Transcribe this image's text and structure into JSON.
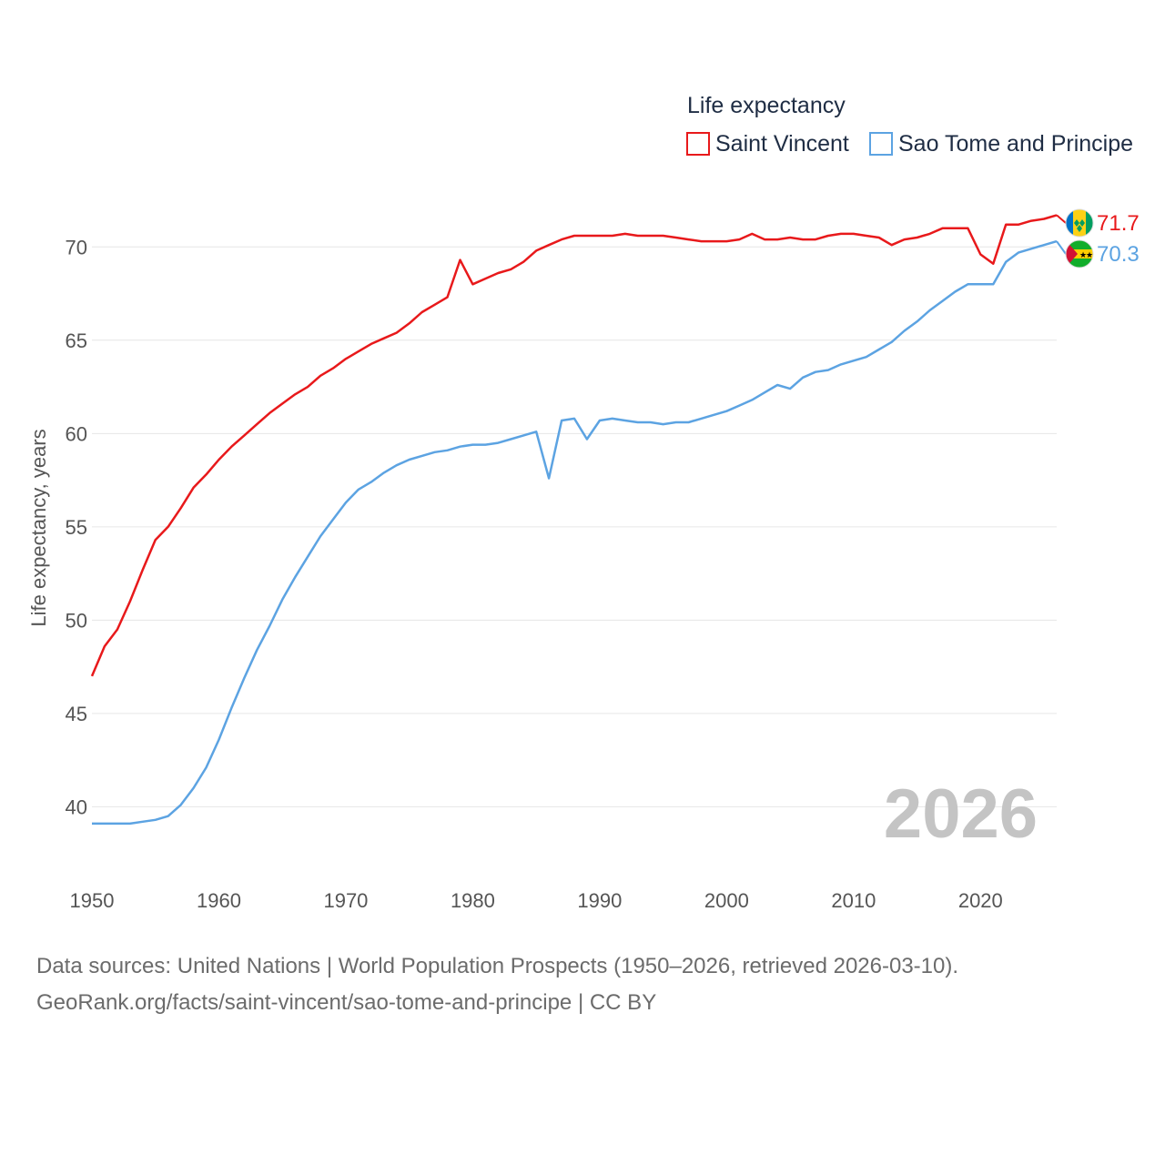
{
  "chart_data": {
    "type": "line",
    "legend": {
      "title": "Life expectancy",
      "position": "top-right"
    },
    "ylabel": "Life expectancy, years",
    "xlabel": "",
    "xlim": [
      1950,
      2026
    ],
    "ylim": [
      36.9,
      72.5
    ],
    "x_ticks": [
      "1950",
      "1960",
      "1970",
      "1980",
      "1990",
      "2000",
      "2010",
      "2020"
    ],
    "y_ticks": [
      "40",
      "45",
      "50",
      "55",
      "60",
      "65",
      "70"
    ],
    "watermark_year": "2026",
    "grid": true,
    "series": [
      {
        "name": "Saint Vincent",
        "color": "#e8191b",
        "flag": "saint-vincent-flag-icon",
        "end_label": "71.7",
        "points": [
          [
            1950,
            47.0
          ],
          [
            1951,
            48.6
          ],
          [
            1952,
            49.5
          ],
          [
            1953,
            51.0
          ],
          [
            1954,
            52.7
          ],
          [
            1955,
            54.3
          ],
          [
            1956,
            55.0
          ],
          [
            1957,
            56.0
          ],
          [
            1958,
            57.1
          ],
          [
            1959,
            57.8
          ],
          [
            1960,
            58.6
          ],
          [
            1961,
            59.3
          ],
          [
            1962,
            59.9
          ],
          [
            1963,
            60.5
          ],
          [
            1964,
            61.1
          ],
          [
            1965,
            61.6
          ],
          [
            1966,
            62.1
          ],
          [
            1967,
            62.5
          ],
          [
            1968,
            63.1
          ],
          [
            1969,
            63.5
          ],
          [
            1970,
            64.0
          ],
          [
            1971,
            64.4
          ],
          [
            1972,
            64.8
          ],
          [
            1973,
            65.1
          ],
          [
            1974,
            65.4
          ],
          [
            1975,
            65.9
          ],
          [
            1976,
            66.5
          ],
          [
            1977,
            66.9
          ],
          [
            1978,
            67.3
          ],
          [
            1979,
            69.3
          ],
          [
            1980,
            68.0
          ],
          [
            1981,
            68.3
          ],
          [
            1982,
            68.6
          ],
          [
            1983,
            68.8
          ],
          [
            1984,
            69.2
          ],
          [
            1985,
            69.8
          ],
          [
            1986,
            70.1
          ],
          [
            1987,
            70.4
          ],
          [
            1988,
            70.6
          ],
          [
            1989,
            70.6
          ],
          [
            1990,
            70.6
          ],
          [
            1991,
            70.6
          ],
          [
            1992,
            70.7
          ],
          [
            1993,
            70.6
          ],
          [
            1994,
            70.6
          ],
          [
            1995,
            70.6
          ],
          [
            1996,
            70.5
          ],
          [
            1997,
            70.4
          ],
          [
            1998,
            70.3
          ],
          [
            1999,
            70.3
          ],
          [
            2000,
            70.3
          ],
          [
            2001,
            70.4
          ],
          [
            2002,
            70.7
          ],
          [
            2003,
            70.4
          ],
          [
            2004,
            70.4
          ],
          [
            2005,
            70.5
          ],
          [
            2006,
            70.4
          ],
          [
            2007,
            70.4
          ],
          [
            2008,
            70.6
          ],
          [
            2009,
            70.7
          ],
          [
            2010,
            70.7
          ],
          [
            2011,
            70.6
          ],
          [
            2012,
            70.5
          ],
          [
            2013,
            70.1
          ],
          [
            2014,
            70.4
          ],
          [
            2015,
            70.5
          ],
          [
            2016,
            70.7
          ],
          [
            2017,
            71.0
          ],
          [
            2018,
            71.0
          ],
          [
            2019,
            71.0
          ],
          [
            2020,
            69.6
          ],
          [
            2021,
            69.1
          ],
          [
            2022,
            71.2
          ],
          [
            2023,
            71.2
          ],
          [
            2024,
            71.4
          ],
          [
            2025,
            71.5
          ],
          [
            2026,
            71.7
          ]
        ]
      },
      {
        "name": "Sao Tome and Principe",
        "color": "#5ca3e2",
        "flag": "sao-tome-flag-icon",
        "end_label": "70.3",
        "points": [
          [
            1950,
            39.1
          ],
          [
            1951,
            39.1
          ],
          [
            1952,
            39.1
          ],
          [
            1953,
            39.1
          ],
          [
            1954,
            39.2
          ],
          [
            1955,
            39.3
          ],
          [
            1956,
            39.5
          ],
          [
            1957,
            40.1
          ],
          [
            1958,
            41.0
          ],
          [
            1959,
            42.1
          ],
          [
            1960,
            43.6
          ],
          [
            1961,
            45.3
          ],
          [
            1962,
            46.9
          ],
          [
            1963,
            48.4
          ],
          [
            1964,
            49.7
          ],
          [
            1965,
            51.1
          ],
          [
            1966,
            52.3
          ],
          [
            1967,
            53.4
          ],
          [
            1968,
            54.5
          ],
          [
            1969,
            55.4
          ],
          [
            1970,
            56.3
          ],
          [
            1971,
            57.0
          ],
          [
            1972,
            57.4
          ],
          [
            1973,
            57.9
          ],
          [
            1974,
            58.3
          ],
          [
            1975,
            58.6
          ],
          [
            1976,
            58.8
          ],
          [
            1977,
            59.0
          ],
          [
            1978,
            59.1
          ],
          [
            1979,
            59.3
          ],
          [
            1980,
            59.4
          ],
          [
            1981,
            59.4
          ],
          [
            1982,
            59.5
          ],
          [
            1983,
            59.7
          ],
          [
            1984,
            59.9
          ],
          [
            1985,
            60.1
          ],
          [
            1986,
            57.6
          ],
          [
            1987,
            60.7
          ],
          [
            1988,
            60.8
          ],
          [
            1989,
            59.7
          ],
          [
            1990,
            60.7
          ],
          [
            1991,
            60.8
          ],
          [
            1992,
            60.7
          ],
          [
            1993,
            60.6
          ],
          [
            1994,
            60.6
          ],
          [
            1995,
            60.5
          ],
          [
            1996,
            60.6
          ],
          [
            1997,
            60.6
          ],
          [
            1998,
            60.8
          ],
          [
            1999,
            61.0
          ],
          [
            2000,
            61.2
          ],
          [
            2001,
            61.5
          ],
          [
            2002,
            61.8
          ],
          [
            2003,
            62.2
          ],
          [
            2004,
            62.6
          ],
          [
            2005,
            62.4
          ],
          [
            2006,
            63.0
          ],
          [
            2007,
            63.3
          ],
          [
            2008,
            63.4
          ],
          [
            2009,
            63.7
          ],
          [
            2010,
            63.9
          ],
          [
            2011,
            64.1
          ],
          [
            2012,
            64.5
          ],
          [
            2013,
            64.9
          ],
          [
            2014,
            65.5
          ],
          [
            2015,
            66.0
          ],
          [
            2016,
            66.6
          ],
          [
            2017,
            67.1
          ],
          [
            2018,
            67.6
          ],
          [
            2019,
            68.0
          ],
          [
            2020,
            68.0
          ],
          [
            2021,
            68.0
          ],
          [
            2022,
            69.2
          ],
          [
            2023,
            69.7
          ],
          [
            2024,
            69.9
          ],
          [
            2025,
            70.1
          ],
          [
            2026,
            70.3
          ]
        ]
      }
    ]
  },
  "source": {
    "line1": "Data sources: United Nations | World Population Prospects (1950–2026, retrieved 2026-03-10).",
    "line2": "GeoRank.org/facts/saint-vincent/sao-tome-and-principe | CC BY"
  }
}
